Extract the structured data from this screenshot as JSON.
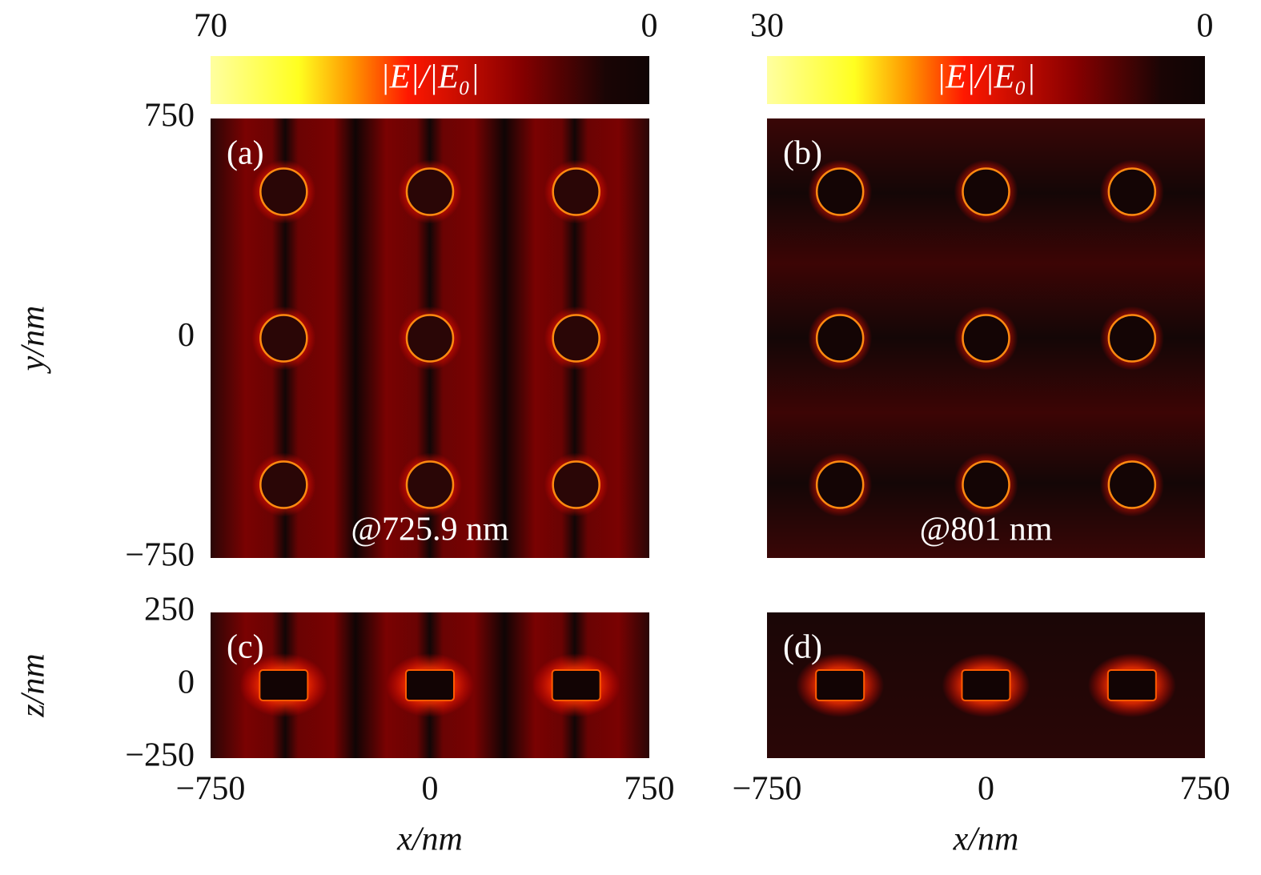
{
  "chart_data": [
    {
      "type": "heatmap",
      "panel": "(a)",
      "annotation": "@725.9 nm",
      "pattern": "vertical",
      "xlim": [
        -750,
        750
      ],
      "ylim": [
        -750,
        750
      ],
      "yticks": [
        {
          "value": -750,
          "label": "−750"
        },
        0,
        750
      ],
      "ylabel": "y/nm",
      "colorbar": {
        "label": "|E|/|E₀|",
        "lim": [
          70,
          0
        ],
        "ticks": [
          70,
          0
        ]
      }
    },
    {
      "type": "heatmap",
      "panel": "(b)",
      "annotation": "@801 nm",
      "pattern": "horizontal",
      "xlim": [
        -750,
        750
      ],
      "ylim": [
        -750,
        750
      ],
      "colorbar": {
        "label": "|E|/|E₀|",
        "lim": [
          30,
          0
        ],
        "ticks": [
          30,
          0
        ]
      }
    },
    {
      "type": "heatmap",
      "panel": "(c)",
      "pattern": "vertical-side",
      "xlim": [
        -750,
        750
      ],
      "ylim": [
        -250,
        250
      ],
      "xticks": [
        {
          "value": -750,
          "label": "−750"
        },
        0,
        750
      ],
      "yticks": [
        {
          "value": -250,
          "label": "−250"
        },
        0,
        250
      ],
      "xlabel": "x/nm",
      "ylabel": "z/nm"
    },
    {
      "type": "heatmap",
      "panel": "(d)",
      "pattern": "dark-side",
      "xlim": [
        -750,
        750
      ],
      "ylim": [
        -250,
        250
      ],
      "xticks": [
        {
          "value": -750,
          "label": "−750"
        },
        0,
        750
      ],
      "xlabel": "x/nm"
    }
  ]
}
